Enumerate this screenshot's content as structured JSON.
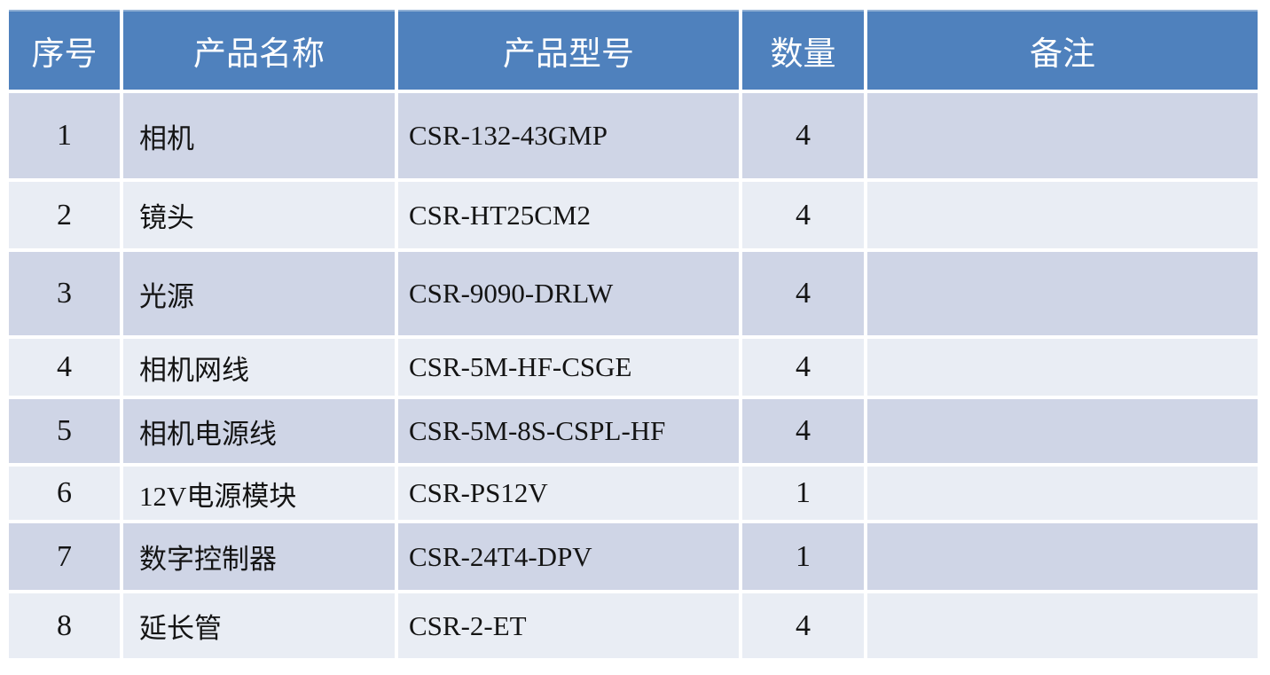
{
  "table": {
    "columns": [
      {
        "key": "index",
        "label": "序号"
      },
      {
        "key": "name",
        "label": "产品名称"
      },
      {
        "key": "model",
        "label": "产品型号"
      },
      {
        "key": "qty",
        "label": "数量"
      },
      {
        "key": "remark",
        "label": "备注"
      }
    ],
    "rows": [
      {
        "index": "1",
        "name": "相机",
        "model": "CSR-132-43GMP",
        "qty": "4",
        "remark": ""
      },
      {
        "index": "2",
        "name": "镜头",
        "model": "CSR-HT25CM2",
        "qty": "4",
        "remark": ""
      },
      {
        "index": "3",
        "name": "光源",
        "model": "CSR-9090-DRLW",
        "qty": "4",
        "remark": ""
      },
      {
        "index": "4",
        "name": "相机网线",
        "model": "CSR-5M-HF-CSGE",
        "qty": "4",
        "remark": ""
      },
      {
        "index": "5",
        "name": "相机电源线",
        "model": "CSR-5M-8S-CSPL-HF",
        "qty": "4",
        "remark": ""
      },
      {
        "index": "6",
        "name": "12V电源模块",
        "model": "CSR-PS12V",
        "qty": "1",
        "remark": ""
      },
      {
        "index": "7",
        "name": "数字控制器",
        "model": "CSR-24T4-DPV",
        "qty": "1",
        "remark": ""
      },
      {
        "index": "8",
        "name": "延长管",
        "model": "CSR-2-ET",
        "qty": "4",
        "remark": ""
      }
    ],
    "colors": {
      "header_bg": "#4F81BD",
      "header_text": "#FFFFFF",
      "band_dark": "#CFD5E6",
      "band_light": "#E9EDF4",
      "body_text": "#141414",
      "gap": "#FFFFFF"
    }
  }
}
